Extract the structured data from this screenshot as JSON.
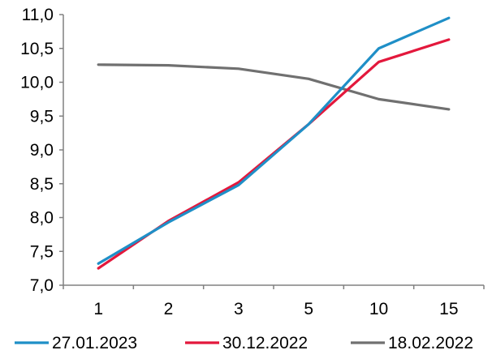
{
  "chart_data": {
    "type": "line",
    "title": "",
    "xlabel": "",
    "ylabel": "",
    "categories": [
      "1",
      "2",
      "3",
      "5",
      "10",
      "15"
    ],
    "ylim": [
      7.0,
      11.0
    ],
    "yticks": [
      "7,0",
      "7,5",
      "8,0",
      "8,5",
      "9,0",
      "9,5",
      "10,0",
      "10,5",
      "11,0"
    ],
    "grid": false,
    "legend_position": "bottom",
    "series": [
      {
        "name": "27.01.2023",
        "color": "#1f8fc7",
        "values": [
          7.32,
          7.93,
          8.48,
          9.38,
          10.5,
          10.95
        ]
      },
      {
        "name": "30.12.2022",
        "color": "#e3183c",
        "values": [
          7.25,
          7.95,
          8.52,
          9.38,
          10.3,
          10.63
        ]
      },
      {
        "name": "18.02.2022",
        "color": "#707070",
        "values": [
          10.26,
          10.25,
          10.2,
          10.05,
          9.75,
          9.6
        ]
      }
    ]
  }
}
